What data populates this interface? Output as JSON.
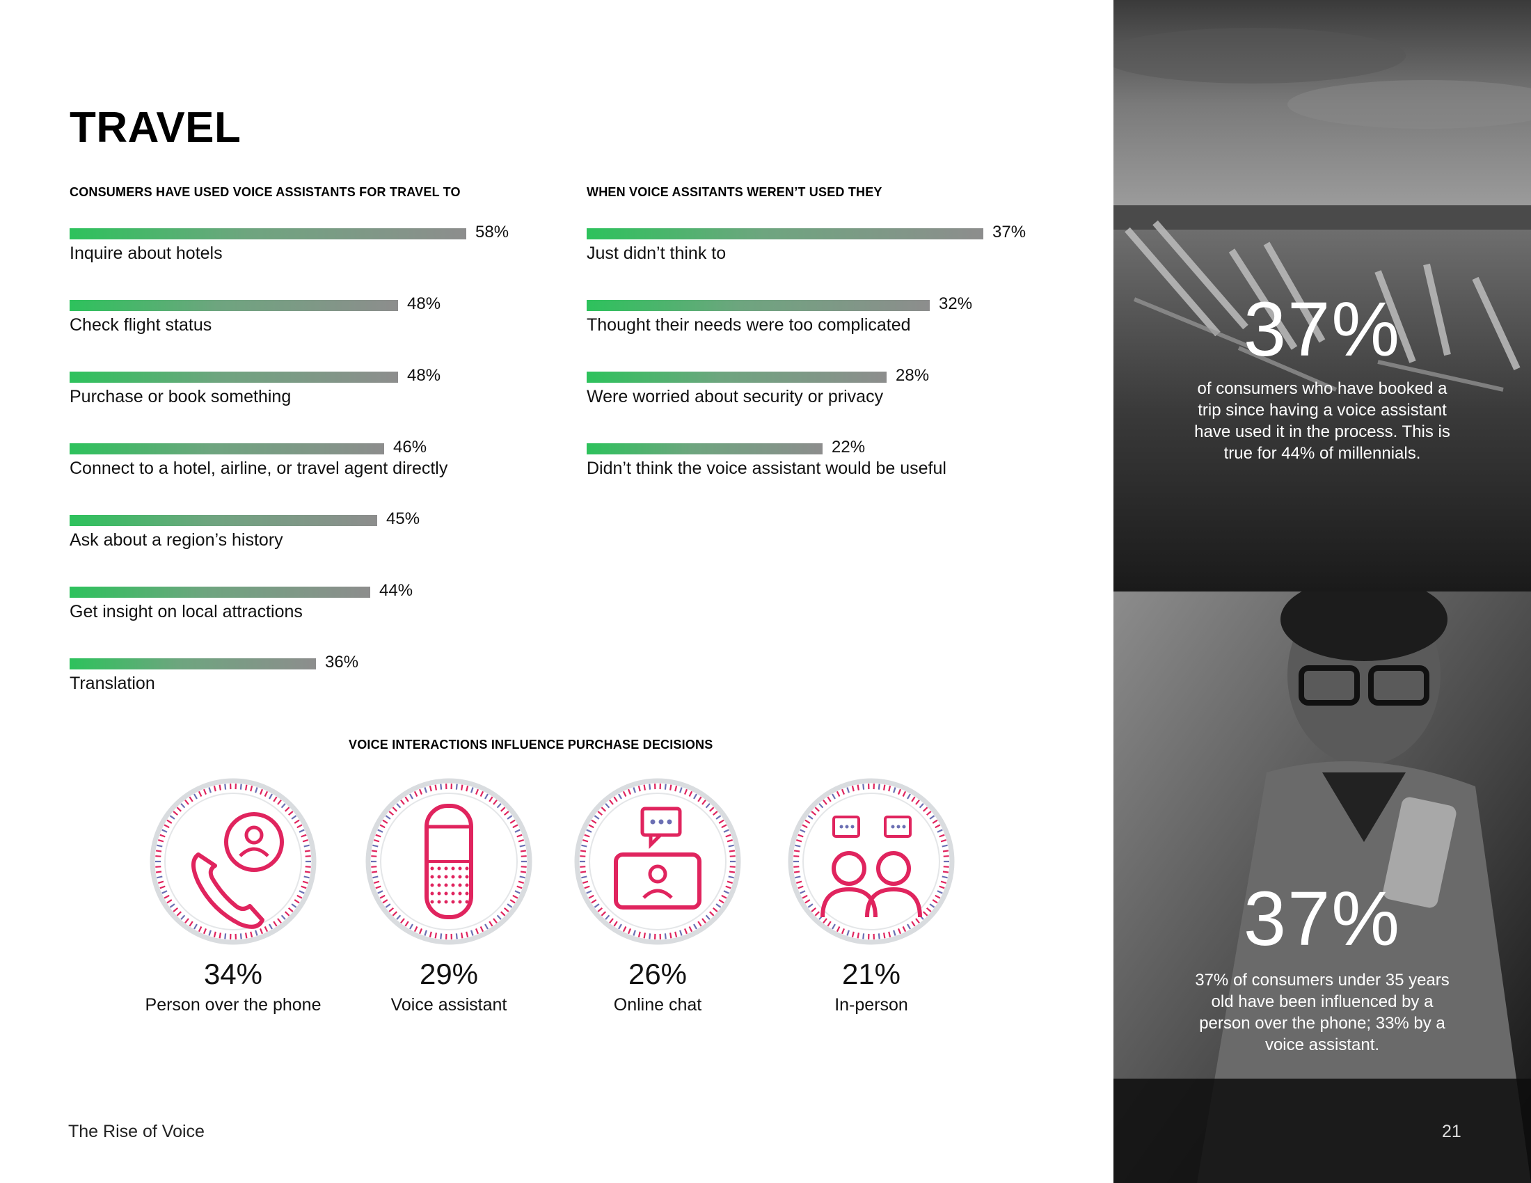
{
  "page": {
    "title": "TRAVEL",
    "footer_left": "The Rise of Voice",
    "page_number": "21"
  },
  "chart_data": [
    {
      "type": "bar",
      "orientation": "horizontal",
      "title": "CONSUMERS HAVE USED VOICE ASSISTANTS FOR TRAVEL TO",
      "categories": [
        "Inquire about hotels",
        "Check flight status",
        "Purchase or book something",
        "Connect to a hotel, airline, or travel agent directly",
        "Ask about a region’s history",
        "Get insight on local attractions",
        "Translation"
      ],
      "values": [
        58,
        48,
        48,
        46,
        45,
        44,
        36
      ],
      "value_labels": [
        "58%",
        "48%",
        "48%",
        "46%",
        "45%",
        "44%",
        "36%"
      ],
      "unit": "%",
      "xlim": [
        0,
        58
      ]
    },
    {
      "type": "bar",
      "orientation": "horizontal",
      "title": "WHEN VOICE ASSITANTS WEREN’T USED THEY",
      "categories": [
        "Just didn’t think to",
        "Thought their needs were too complicated",
        "Were worried about security or privacy",
        "Didn’t think the voice assistant would be useful"
      ],
      "values": [
        37,
        32,
        28,
        22
      ],
      "value_labels": [
        "37%",
        "32%",
        "28%",
        "22%"
      ],
      "unit": "%",
      "xlim": [
        0,
        37
      ]
    },
    {
      "type": "pie",
      "title": "VOICE INTERACTIONS INFLUENCE PURCHASE DECISIONS",
      "categories": [
        "Person over the phone",
        "Voice assistant",
        "Online chat",
        "In-person"
      ],
      "values": [
        34,
        29,
        26,
        21
      ],
      "value_labels": [
        "34%",
        "29%",
        "26%",
        "21%"
      ],
      "icons": [
        "phone-person-icon",
        "smart-speaker-icon",
        "video-chat-icon",
        "two-people-chat-icon"
      ]
    }
  ],
  "colors": {
    "bar_start": "#2dc25c",
    "bar_end": "#8d8d8d",
    "icon": "#e0245e",
    "ring_track": "#d9dcdf",
    "ring_tick_a": "#e0245e",
    "ring_tick_b": "#6b6fb3"
  },
  "side_panel": {
    "stat1_value": "37%",
    "stat1_text": "of consumers who have booked a trip since having a voice assistant have used it in the process. This is true for 44% of millennials.",
    "stat2_value": "37%",
    "stat2_text": "37% of consumers under 35 years old have been influenced by a person over the phone; 33% by a voice assistant."
  }
}
